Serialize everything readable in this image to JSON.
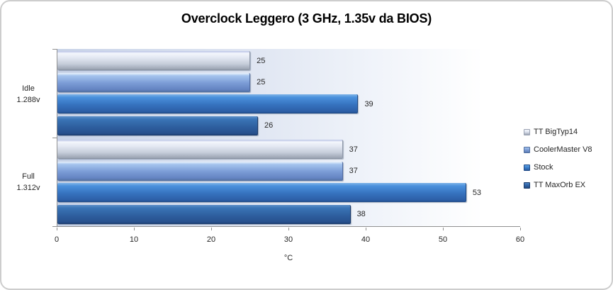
{
  "frame": {
    "background": "#ffffff",
    "border_color": "#cdcdcd"
  },
  "chart_data": {
    "type": "bar",
    "orientation": "horizontal",
    "title": "Overclock Leggero (3 GHz, 1.35v da BIOS)",
    "xlabel": "°C",
    "xlim": [
      0,
      60
    ],
    "xticks": [
      0,
      10,
      20,
      30,
      40,
      50,
      60
    ],
    "grid": false,
    "legend_position": "right",
    "axis_color": "#909090",
    "text_color": "#262626",
    "plot_background_gradient": [
      "#c8d3e8",
      "#ffffff"
    ],
    "categories": [
      {
        "label": "Idle",
        "sublabel": "1.288v"
      },
      {
        "label": "Full",
        "sublabel": "1.312v"
      }
    ],
    "series": [
      {
        "name": "TT BigTyp14",
        "color": "#dde3f0",
        "values": [
          25,
          37
        ]
      },
      {
        "name": "CoolerMaster V8",
        "color": "#7b9cd6",
        "values": [
          25,
          37
        ]
      },
      {
        "name": "Stock",
        "color": "#3a7ecb",
        "values": [
          39,
          53
        ]
      },
      {
        "name": "TT MaxOrb EX",
        "color": "#2f63a6",
        "values": [
          26,
          38
        ]
      }
    ]
  }
}
